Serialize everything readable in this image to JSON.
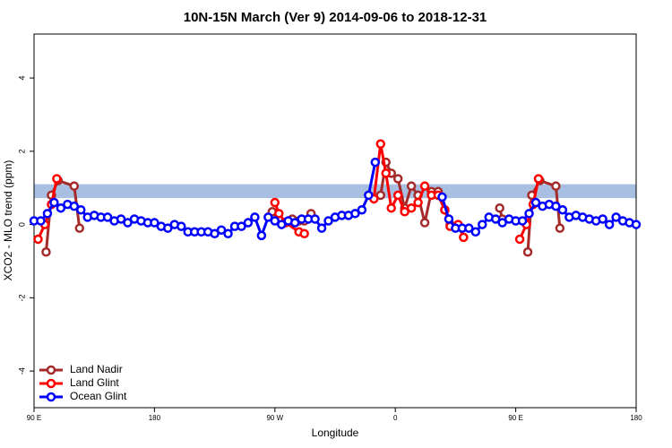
{
  "chart_data": {
    "type": "line",
    "title": "10N-15N March (Ver 9)   2014-09-06 to 2018-12-31",
    "xlabel": "Longitude",
    "ylabel": "XCO2 - MLO trend (ppm)",
    "xlim": [
      90,
      540
    ],
    "xticks": [
      {
        "value": 90,
        "label": "90 E"
      },
      {
        "value": 180,
        "label": "180"
      },
      {
        "value": 270,
        "label": "90 W"
      },
      {
        "value": 360,
        "label": "0"
      },
      {
        "value": 450,
        "label": "90 E"
      },
      {
        "value": 540,
        "label": "180"
      }
    ],
    "ylim": [
      -5,
      5.2
    ],
    "yticks": [
      -4,
      -2,
      0,
      2,
      4
    ],
    "band": [
      0.72,
      1.1
    ],
    "band_color": "#a8bfe2",
    "legend": "bottom-left",
    "series": [
      {
        "name": "Land Nadir",
        "color": "#a52a2a",
        "x": [
          99,
          103,
          108,
          120,
          124,
          200,
          268,
          273,
          283,
          288,
          292,
          297,
          320,
          349,
          353,
          357,
          362,
          367,
          372,
          377,
          382,
          387,
          392,
          397,
          401,
          407,
          420,
          438,
          440,
          445,
          459,
          462,
          468,
          480,
          483
        ],
        "values": [
          -0.75,
          0.8,
          1.2,
          1.05,
          -0.1,
          null,
          0.35,
          0.15,
          0.15,
          0.1,
          0.1,
          0.3,
          null,
          0.8,
          1.7,
          1.4,
          1.25,
          0.45,
          1.05,
          0.8,
          0.05,
          0.9,
          0.9,
          0.4,
          0,
          -0.05,
          null,
          0.45,
          0.15,
          null,
          -0.75,
          0.8,
          1.2,
          1.05,
          -0.1
        ]
      },
      {
        "name": "Land Glint",
        "color": "#ff0000",
        "x": [
          93,
          98,
          103,
          107,
          200,
          270,
          273,
          278,
          288,
          292,
          320,
          344,
          349,
          353,
          357,
          362,
          367,
          372,
          377,
          382,
          387,
          392,
          397,
          401,
          407,
          411,
          420,
          453,
          458,
          463,
          467
        ],
        "values": [
          -0.4,
          0,
          0.55,
          1.25,
          null,
          0.6,
          0.3,
          0.05,
          -0.2,
          -0.25,
          null,
          0.7,
          2.2,
          1.4,
          0.45,
          0.8,
          0.35,
          0.45,
          0.6,
          1.05,
          0.8,
          0.8,
          0.4,
          -0.05,
          0,
          -0.35,
          null,
          -0.4,
          0,
          0.55,
          1.25
        ]
      },
      {
        "name": "Ocean Glint",
        "color": "#0000ff",
        "x": [
          90,
          95,
          100,
          105,
          110,
          115,
          120,
          125,
          130,
          135,
          140,
          145,
          150,
          155,
          160,
          165,
          170,
          175,
          180,
          185,
          190,
          195,
          200,
          205,
          210,
          215,
          220,
          225,
          230,
          235,
          240,
          245,
          250,
          255,
          260,
          265,
          270,
          275,
          280,
          285,
          290,
          295,
          300,
          305,
          310,
          315,
          320,
          325,
          330,
          335,
          340,
          345,
          350,
          395,
          400,
          405,
          410,
          415,
          420,
          425,
          430,
          435,
          440,
          445,
          450,
          455,
          460,
          465,
          470,
          475,
          480,
          485,
          490,
          495,
          500,
          505,
          510,
          515,
          520,
          525,
          530,
          535,
          540
        ],
        "values": [
          0.1,
          0.1,
          0.3,
          0.6,
          0.45,
          0.55,
          0.5,
          0.4,
          0.2,
          0.25,
          0.2,
          0.2,
          0.1,
          0.15,
          0.05,
          0.15,
          0.1,
          0.05,
          0.05,
          -0.05,
          -0.1,
          0,
          -0.05,
          -0.2,
          -0.2,
          -0.2,
          -0.2,
          -0.25,
          -0.15,
          -0.25,
          -0.05,
          -0.05,
          0.05,
          0.2,
          -0.3,
          0.2,
          0.1,
          0,
          0.1,
          0.05,
          0.15,
          0.15,
          0.15,
          -0.1,
          0.1,
          0.2,
          0.25,
          0.25,
          0.3,
          0.4,
          0.8,
          1.7,
          null,
          0.75,
          0.15,
          -0.1,
          -0.1,
          -0.1,
          -0.2,
          0,
          0.2,
          0.15,
          0.05,
          0.15,
          0.1,
          0.1,
          0.3,
          0.6,
          0.5,
          0.55,
          0.5,
          0.4,
          0.2,
          0.25,
          0.2,
          0.15,
          0.1,
          0.15,
          0,
          0.2,
          0.1,
          0.05,
          0
        ]
      }
    ]
  }
}
